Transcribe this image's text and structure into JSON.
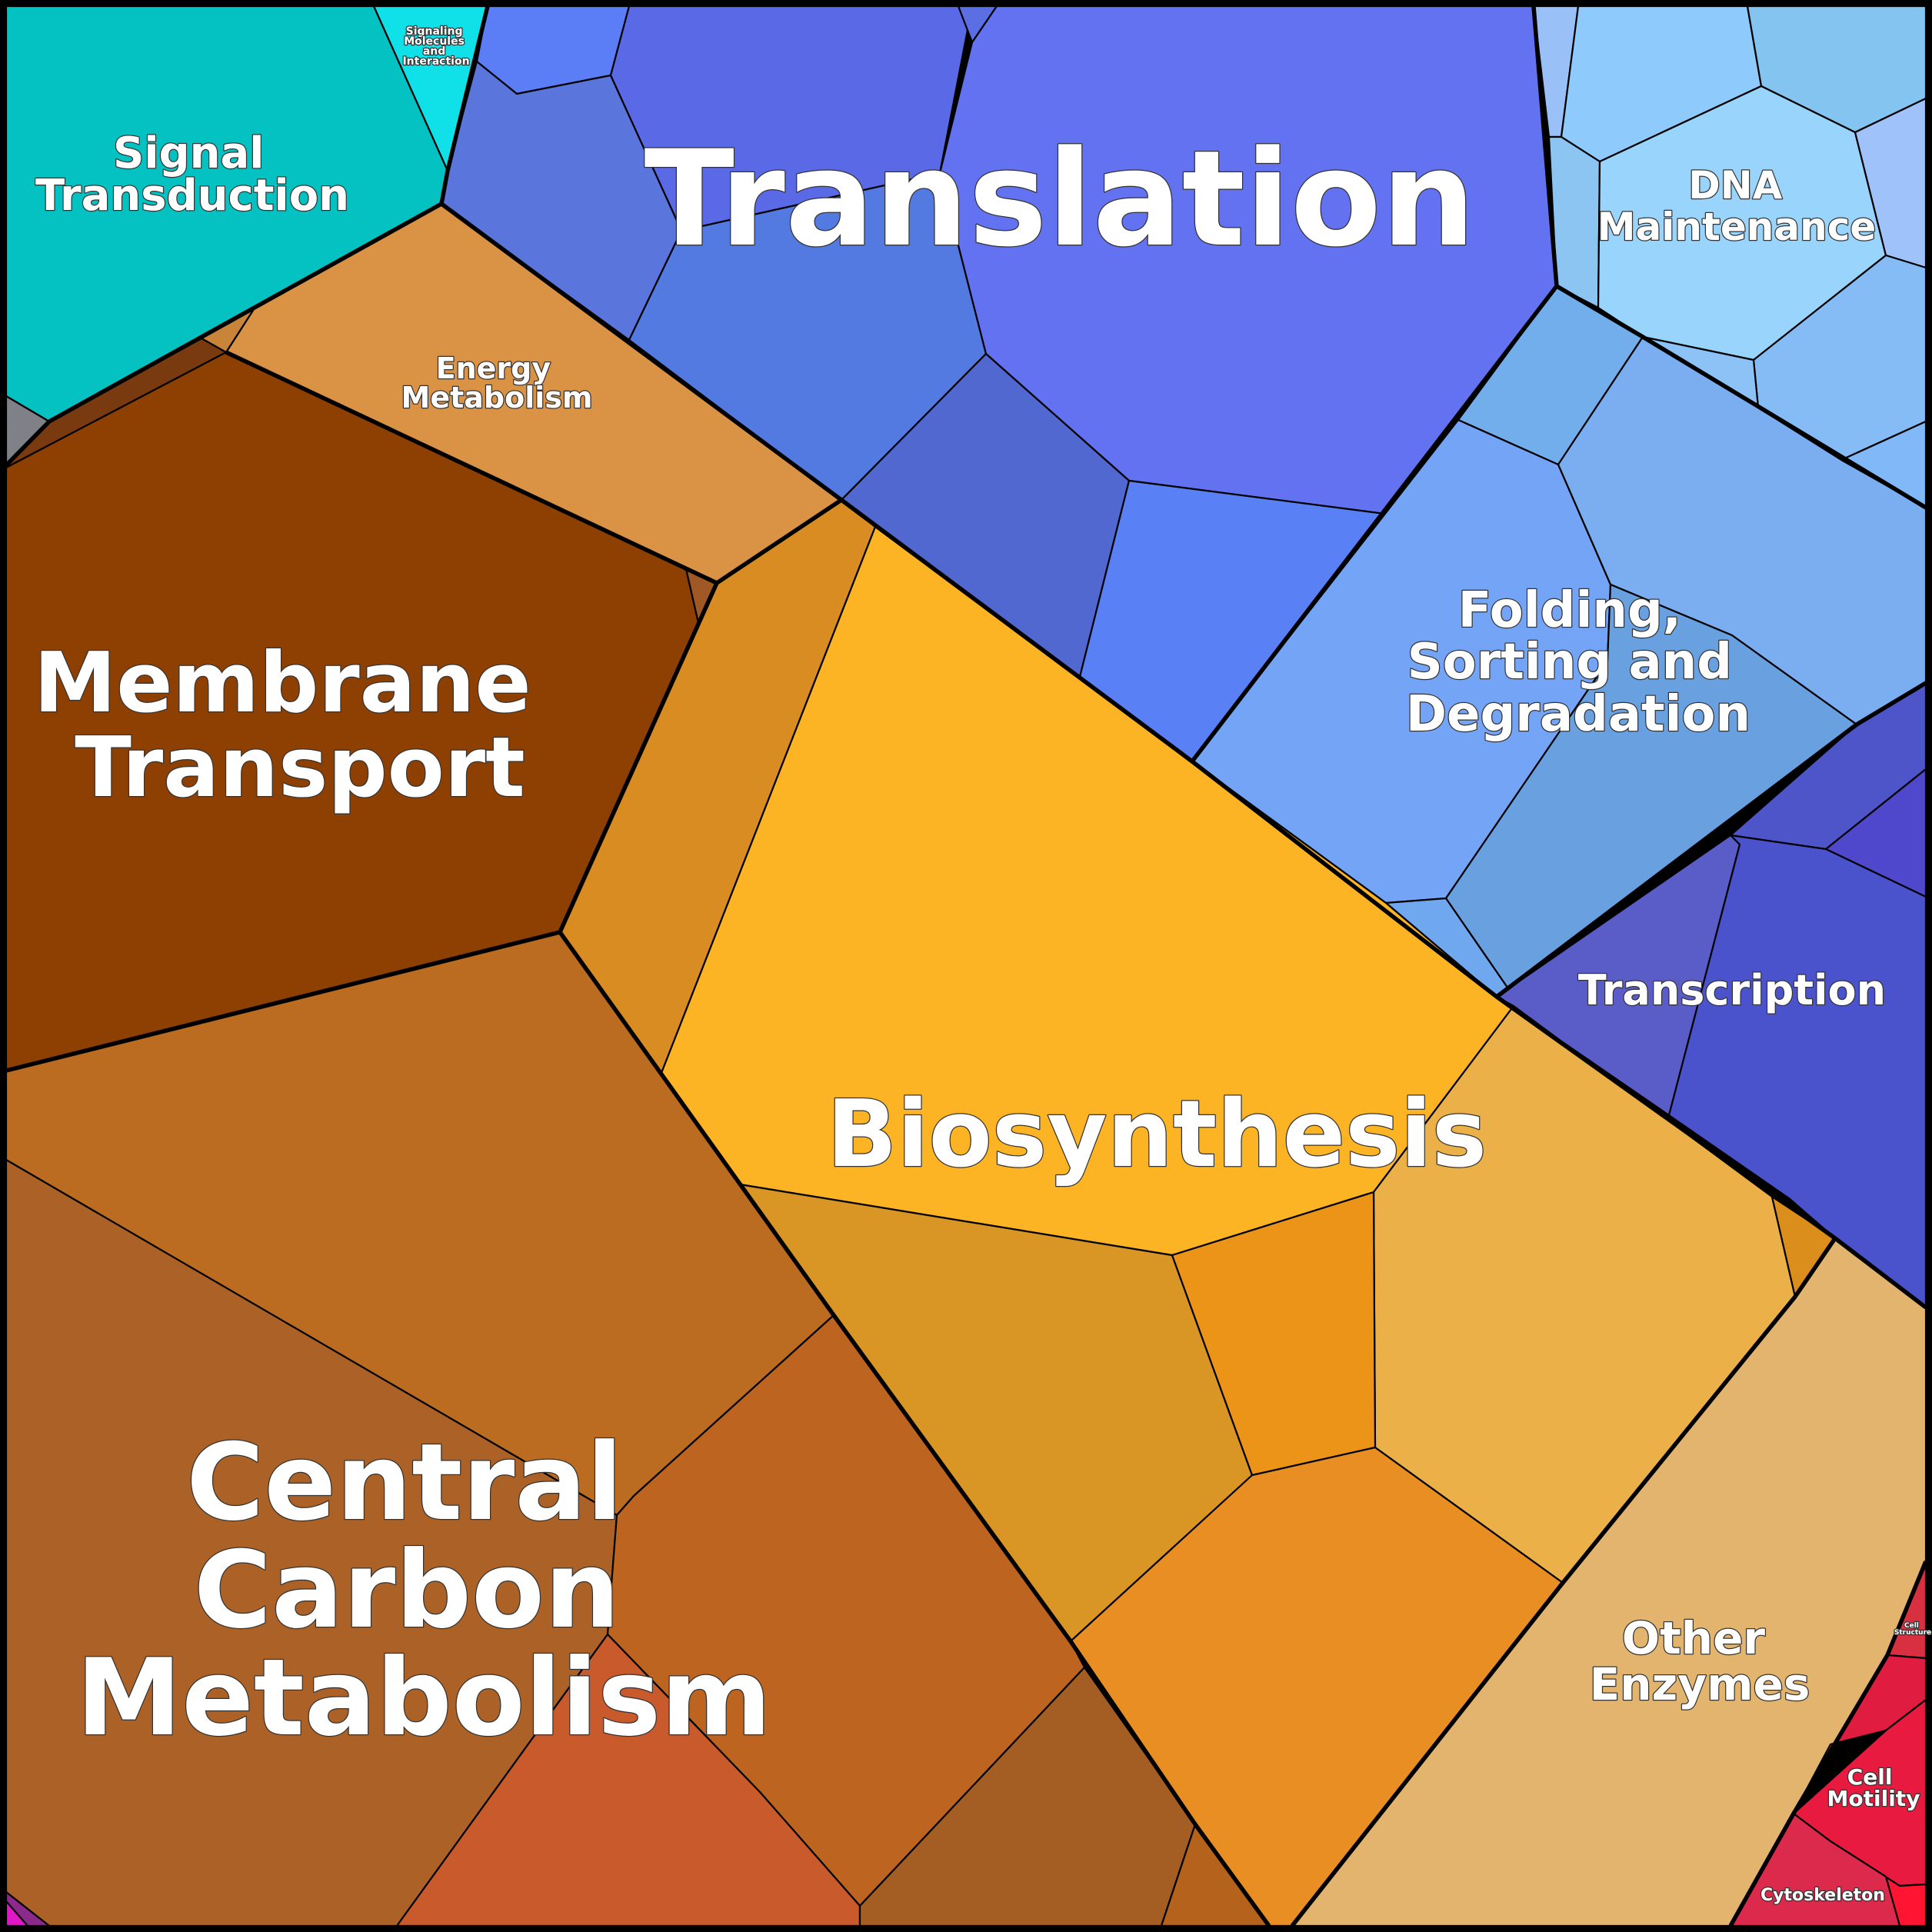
{
  "palette": {
    "signal_transduction": "#04c2c2",
    "signaling_molecules": "#10e0e8",
    "translation": "#6272f0",
    "dna_maintenance": "#98d4fc",
    "folding_sorting_degradation": "#74a4f6",
    "transcription": "#4a52cc",
    "energy_metabolism": "#da9245",
    "membrane_transport": "#8e3f02",
    "biosynthesis": "#fcb324",
    "central_carbon_metabolism": "#ac6226",
    "other_enzymes": "#e2b46e",
    "cell_motility": "#e81a40",
    "cytoskeleton": "#dc2a4c",
    "drug_resistance": "#808088"
  },
  "labels": {
    "signal_transduction": [
      "Signal",
      "Transduction"
    ],
    "signaling_molecules": [
      "Signaling",
      "Molecules",
      "and",
      "Interaction"
    ],
    "translation": [
      "Translation"
    ],
    "dna_maintenance": [
      "DNA",
      "Maintenance"
    ],
    "energy_metabolism": [
      "Energy",
      "Metabolism"
    ],
    "folding_sorting_degradation": [
      "Folding,",
      "Sorting and",
      "Degradation"
    ],
    "membrane_transport": [
      "Membrane",
      "Transport"
    ],
    "transcription": [
      "Transcription"
    ],
    "biosynthesis": [
      "Biosynthesis"
    ],
    "central_carbon_metabolism": [
      "Central",
      "Carbon",
      "Metabolism"
    ],
    "other_enzymes": [
      "Other",
      "Enzymes"
    ],
    "cell_motility": [
      "Cell",
      "Motility"
    ],
    "cell_structure": [
      "Cell",
      "Structure"
    ],
    "cytoskeleton": [
      "Cytoskeleton"
    ]
  }
}
